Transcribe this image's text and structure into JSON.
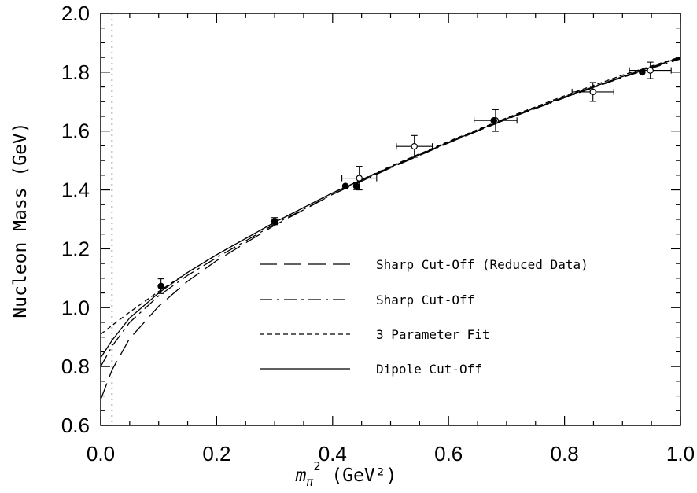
{
  "chart_data": {
    "type": "scatter",
    "xlabel_parts": {
      "m": "m",
      "pi": "π",
      "sq": "2",
      "rest": " (GeV²)"
    },
    "ylabel": "Nucleon Mass (GeV)",
    "xlim": [
      0.0,
      1.0
    ],
    "ylim": [
      0.6,
      2.0
    ],
    "xticks": [
      "0.0",
      "0.2",
      "0.4",
      "0.6",
      "0.8",
      "1.0"
    ],
    "yticks": [
      "0.6",
      "0.8",
      "1.0",
      "1.2",
      "1.4",
      "1.6",
      "1.8",
      "2.0"
    ],
    "vertical_marker_x": 0.0196,
    "legend": [
      {
        "label": "Sharp Cut-Off (Reduced Data)",
        "style": "long-dash"
      },
      {
        "label": "Sharp Cut-Off",
        "style": "dash-dot"
      },
      {
        "label": "3 Parameter Fit",
        "style": "short-dash"
      },
      {
        "label": "Dipole Cut-Off",
        "style": "solid"
      }
    ],
    "points_filled": [
      {
        "x": 0.104,
        "y": 1.073,
        "yerr": 0.025,
        "xerr": 0.0
      },
      {
        "x": 0.3,
        "y": 1.294,
        "yerr": 0.012,
        "xerr": 0.0
      },
      {
        "x": 0.422,
        "y": 1.413,
        "yerr": 0.0,
        "xerr": 0.0
      },
      {
        "x": 0.441,
        "y": 1.413,
        "yerr": 0.012,
        "xerr": 0.0
      },
      {
        "x": 0.678,
        "y": 1.636,
        "yerr": 0.0,
        "xerr": 0.0
      },
      {
        "x": 0.934,
        "y": 1.8,
        "yerr": 0.0,
        "xerr": 0.0
      }
    ],
    "points_open": [
      {
        "x": 0.446,
        "y": 1.44,
        "yerr": 0.04,
        "xerr": 0.03
      },
      {
        "x": 0.541,
        "y": 1.548,
        "yerr": 0.037,
        "xerr": 0.031
      },
      {
        "x": 0.681,
        "y": 1.636,
        "yerr": 0.037,
        "xerr": 0.037
      },
      {
        "x": 0.849,
        "y": 1.733,
        "yerr": 0.032,
        "xerr": 0.036
      },
      {
        "x": 0.948,
        "y": 1.806,
        "yerr": 0.028,
        "xerr": 0.036
      }
    ],
    "curves": [
      {
        "name": "Sharp Cut-Off (Reduced Data)",
        "style": "long-dash",
        "x": [
          0.0,
          0.02,
          0.05,
          0.1,
          0.15,
          0.2,
          0.3,
          0.4,
          0.5,
          0.6,
          0.7,
          0.8,
          0.9,
          1.0
        ],
        "y": [
          0.688,
          0.79,
          0.895,
          1.005,
          1.09,
          1.16,
          1.28,
          1.385,
          1.475,
          1.56,
          1.64,
          1.714,
          1.783,
          1.848
        ]
      },
      {
        "name": "Sharp Cut-Off",
        "style": "dash-dot",
        "x": [
          0.0,
          0.02,
          0.05,
          0.1,
          0.15,
          0.2,
          0.3,
          0.4,
          0.5,
          0.6,
          0.7,
          0.8,
          0.9,
          1.0
        ],
        "y": [
          0.8,
          0.87,
          0.95,
          1.04,
          1.11,
          1.17,
          1.284,
          1.385,
          1.475,
          1.56,
          1.64,
          1.713,
          1.782,
          1.845
        ]
      },
      {
        "name": "3 Parameter Fit",
        "style": "short-dash",
        "x": [
          0.0,
          0.02,
          0.05,
          0.1,
          0.15,
          0.2,
          0.3,
          0.4,
          0.5,
          0.6,
          0.7,
          0.8,
          0.9,
          1.0
        ],
        "y": [
          0.91,
          0.94,
          0.985,
          1.055,
          1.12,
          1.18,
          1.29,
          1.39,
          1.48,
          1.565,
          1.645,
          1.72,
          1.79,
          1.852
        ]
      },
      {
        "name": "Dipole Cut-Off",
        "style": "solid",
        "x": [
          0.0,
          0.02,
          0.05,
          0.1,
          0.15,
          0.2,
          0.3,
          0.4,
          0.5,
          0.6,
          0.7,
          0.8,
          0.9,
          1.0
        ],
        "y": [
          0.83,
          0.89,
          0.965,
          1.05,
          1.12,
          1.18,
          1.29,
          1.39,
          1.478,
          1.562,
          1.642,
          1.716,
          1.785,
          1.85
        ]
      }
    ]
  }
}
